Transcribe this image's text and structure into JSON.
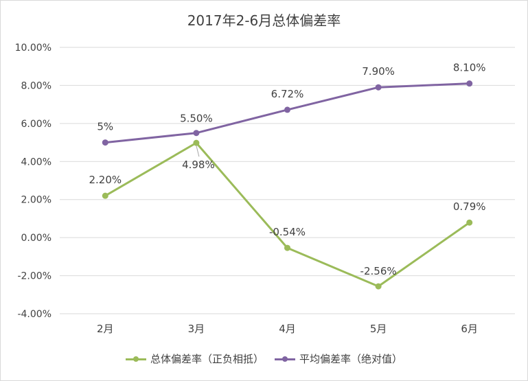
{
  "chart_data": {
    "type": "line",
    "title": "2017年2-6月总体偏差率",
    "categories": [
      "2月",
      "3月",
      "4月",
      "5月",
      "6月"
    ],
    "ylim": [
      -4,
      10
    ],
    "yticks": [
      -4,
      -2,
      0,
      2,
      4,
      6,
      8,
      10
    ],
    "ytick_labels": [
      "-4.00%",
      "-2.00%",
      "0.00%",
      "2.00%",
      "4.00%",
      "6.00%",
      "8.00%",
      "10.00%"
    ],
    "grid": true,
    "legend_position": "bottom",
    "series": [
      {
        "name": "总体偏差率（正负相抵）",
        "color": "#9bbb59",
        "values": [
          2.2,
          4.98,
          -0.54,
          -2.56,
          0.79
        ],
        "labels": [
          "2.20%",
          "4.98%",
          "-0.54%",
          "-2.56%",
          "0.79%"
        ]
      },
      {
        "name": "平均偏差率（绝对值）",
        "color": "#8064a2",
        "values": [
          5.0,
          5.5,
          6.72,
          7.9,
          8.1
        ],
        "labels": [
          "5%",
          "5.50%",
          "6.72%",
          "7.90%",
          "8.10%"
        ]
      }
    ]
  }
}
